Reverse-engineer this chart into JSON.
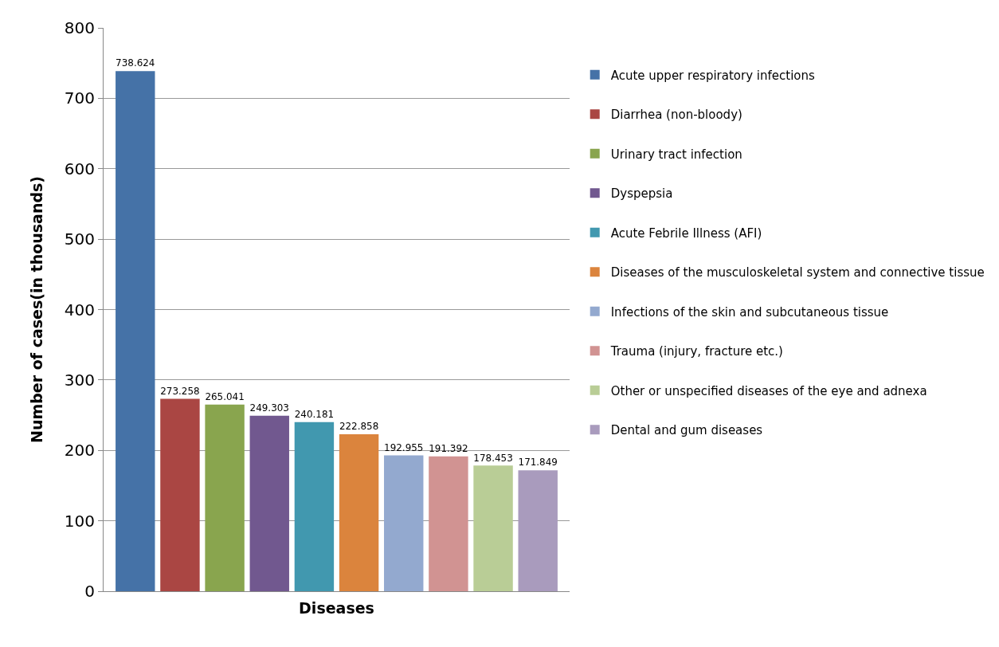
{
  "chart_data": {
    "type": "bar",
    "xlabel": "Diseases",
    "ylabel": "Number of cases(in thousands)",
    "categories": [
      null
    ],
    "series": [
      {
        "name": "Acute upper respiratory infections",
        "color": "#4572a7",
        "values": [
          738.624
        ]
      },
      {
        "name": "Diarrhea (non-bloody)",
        "color": "#aa4643",
        "values": [
          273.258
        ]
      },
      {
        "name": "Urinary tract infection",
        "color": "#89a54e",
        "values": [
          265.041
        ]
      },
      {
        "name": "Dyspepsia",
        "color": "#71588f",
        "values": [
          249.303
        ]
      },
      {
        "name": "Acute Febrile Illness (AFI)",
        "color": "#4198af",
        "values": [
          240.181
        ]
      },
      {
        "name": "Diseases of the musculoskeletal system and connective tissue",
        "color": "#db843d",
        "values": [
          222.858
        ]
      },
      {
        "name": "Infections of the skin and subcutaneous tissue",
        "color": "#93a9cf",
        "values": [
          192.955
        ]
      },
      {
        "name": "Trauma (injury, fracture etc.)",
        "color": "#d19392",
        "values": [
          191.392
        ]
      },
      {
        "name": "Other or unspecified diseases of the eye and adnexa",
        "color": "#b9cd96",
        "values": [
          178.453
        ]
      },
      {
        "name": "Dental and gum diseases",
        "color": "#a99bbd",
        "values": [
          171.849
        ]
      }
    ],
    "ylim": [
      0,
      800
    ],
    "yticks": [
      0,
      100,
      200,
      300,
      400,
      500,
      600,
      700,
      800
    ],
    "grid": "y",
    "legend": "right",
    "data_labels": true
  }
}
